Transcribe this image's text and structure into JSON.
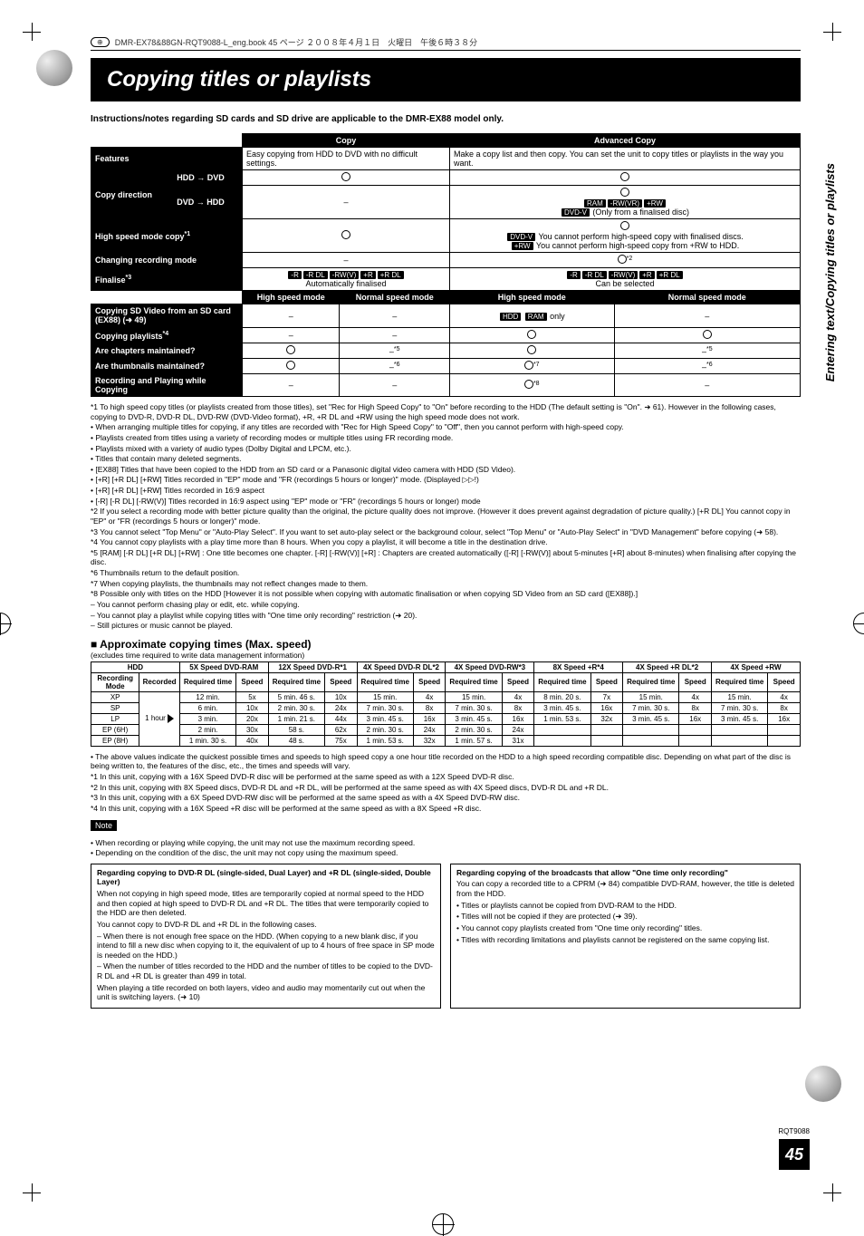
{
  "header_line": "DMR-EX78&88GN-RQT9088-L_eng.book   45 ページ   ２００８年４月１日　火曜日　午後６時３８分",
  "title": "Copying titles or playlists",
  "subnote": "Instructions/notes regarding SD cards and SD drive are applicable to the DMR-EX88 model only.",
  "side_label": "Entering text/Copying titles or playlists",
  "cmp": {
    "col_copy": "Copy",
    "col_adv": "Advanced Copy",
    "rows": {
      "features": "Features",
      "features_copy": "Easy copying from HDD to DVD with no difficult settings.",
      "features_adv": "Make a copy list and then copy.\nYou can set the unit to copy titles or playlists in the way you want.",
      "copy_dir": "Copy direction",
      "hdd_dvd": "HDD → DVD",
      "dvd_hdd": "DVD → HDD",
      "dvd_hdd_adv": "(Only from a finalised disc)",
      "hsm": "High speed mode copy",
      "hsm_adv_l1": "You cannot perform high-speed copy with finalised discs.",
      "hsm_adv_l2": "You cannot perform high-speed copy from +RW to HDD.",
      "crm": "Changing recording mode",
      "finalise": "Finalise",
      "finalise_copy": "Automatically finalised",
      "finalise_adv": "Can be selected",
      "sub_hsm": "High speed mode",
      "sub_nsm": "Normal speed mode",
      "sdv": "Copying SD Video from an SD card",
      "sdv_sub": "(EX88) (➜ 49)",
      "sdv_adv": "only",
      "cpl": "Copying playlists",
      "chm": "Are chapters maintained?",
      "thm": "Are thumbnails maintained?",
      "rpc": "Recording and Playing while Copying"
    }
  },
  "footnotes": [
    "*1 To high speed copy titles (or playlists created from those titles), set \"Rec for High Speed Copy\" to \"On\" before recording to the HDD (The default setting is \"On\". ➜ 61). However in the following cases, copying to DVD-R, DVD-R DL, DVD-RW (DVD-Video format), +R, +R DL and +RW using the high speed mode does not work.",
    "• When arranging multiple titles for copying, if any titles are recorded with \"Rec for High Speed Copy\" to \"Off\", then you cannot perform with high-speed copy.",
    "• Playlists created from titles using a variety of recording modes or multiple titles using FR recording mode.",
    "• Playlists mixed with a variety of audio types (Dolby Digital and LPCM, etc.).",
    "• Titles that contain many deleted segments.",
    "• [EX88] Titles that have been copied to the HDD from an SD card or a Panasonic digital video camera with HDD (SD Video).",
    "• [+R] [+R DL] [+RW] Titles recorded in \"EP\" mode and \"FR (recordings 5 hours or longer)\" mode. (Displayed ▷▷!)",
    "• [+R] [+R DL] [+RW] Titles recorded in 16:9 aspect",
    "• [-R] [-R DL] [-RW(V)] Titles recorded in 16:9 aspect using \"EP\" mode or \"FR\" (recordings 5 hours or longer) mode",
    "*2 If you select a recording mode with better picture quality than the original, the picture quality does not improve. (However it does prevent against degradation of picture quality.) [+R DL] You cannot copy in \"EP\" or \"FR (recordings 5 hours or longer)\" mode.",
    "*3 You cannot select \"Top Menu\" or \"Auto-Play Select\". If you want to set auto-play select or the background colour, select \"Top Menu\" or \"Auto-Play Select\" in \"DVD Management\" before copying (➜ 58).",
    "*4 You cannot copy playlists with a play time more than 8 hours. When you copy a playlist, it will become a title in the destination drive.",
    "*5 [RAM] [-R DL] [+R DL] [+RW] : One title becomes one chapter. [-R] [-RW(V)] [+R] : Chapters are created automatically ([-R] [-RW(V)] about 5-minutes [+R] about 8-minutes) when finalising after copying the disc.",
    "*6 Thumbnails return to the default position.",
    "*7 When copying playlists, the thumbnails may not reflect changes made to them.",
    "*8 Possible only with titles on the HDD  [However it is not possible when copying with automatic finalisation or when copying SD Video from an SD card ([EX88]).]",
    "– You cannot perform chasing play or edit, etc. while copying.",
    "– You cannot play a playlist while copying titles with \"One time only recording\" restriction (➜ 20).",
    "– Still pictures or music cannot be played."
  ],
  "approx_title": "Approximate copying times (Max. speed)",
  "approx_sub": "(excludes time required to write data management information)",
  "spd": {
    "groups": [
      "HDD",
      "5X Speed DVD-RAM",
      "12X Speed DVD-R*1",
      "4X Speed DVD-R DL*2",
      "4X Speed DVD-RW*3",
      "8X Speed +R*4",
      "4X Speed +R DL*2",
      "4X Speed +RW"
    ],
    "sub_rm": "Recording Mode",
    "sub_rec": "Recorded",
    "sub_rt": "Required time",
    "sub_sp": "Speed",
    "rows": [
      {
        "mode": "XP",
        "rec": "1 hour",
        "c": [
          [
            "12 min.",
            "5x"
          ],
          [
            "5 min. 46 s.",
            "10x"
          ],
          [
            "15 min.",
            "4x"
          ],
          [
            "15 min.",
            "4x"
          ],
          [
            "8 min. 20 s.",
            "7x"
          ],
          [
            "15 min.",
            "4x"
          ],
          [
            "15 min.",
            "4x"
          ]
        ]
      },
      {
        "mode": "SP",
        "rec": "",
        "c": [
          [
            "6 min.",
            "10x"
          ],
          [
            "2 min. 30 s.",
            "24x"
          ],
          [
            "7 min. 30 s.",
            "8x"
          ],
          [
            "7 min. 30 s.",
            "8x"
          ],
          [
            "3 min. 45 s.",
            "16x"
          ],
          [
            "7 min. 30 s.",
            "8x"
          ],
          [
            "7 min. 30 s.",
            "8x"
          ]
        ]
      },
      {
        "mode": "LP",
        "rec": "",
        "c": [
          [
            "3 min.",
            "20x"
          ],
          [
            "1 min. 21 s.",
            "44x"
          ],
          [
            "3 min. 45 s.",
            "16x"
          ],
          [
            "3 min. 45 s.",
            "16x"
          ],
          [
            "1 min. 53 s.",
            "32x"
          ],
          [
            "3 min. 45 s.",
            "16x"
          ],
          [
            "3 min. 45 s.",
            "16x"
          ]
        ]
      },
      {
        "mode": "EP (6H)",
        "rec": "",
        "c": [
          [
            "2 min.",
            "30x"
          ],
          [
            "58 s.",
            "62x"
          ],
          [
            "2 min. 30 s.",
            "24x"
          ],
          [
            "2 min. 30 s.",
            "24x"
          ],
          [
            "",
            ""
          ],
          [
            "",
            ""
          ],
          [
            "",
            ""
          ]
        ]
      },
      {
        "mode": "EP (8H)",
        "rec": "",
        "c": [
          [
            "1 min. 30 s.",
            "40x"
          ],
          [
            "48 s.",
            "75x"
          ],
          [
            "1 min. 53 s.",
            "32x"
          ],
          [
            "1 min. 57 s.",
            "31x"
          ],
          [
            "",
            ""
          ],
          [
            "",
            ""
          ],
          [
            "",
            ""
          ]
        ]
      }
    ]
  },
  "below_spd": [
    "• The above values indicate the quickest possible times and speeds to high speed copy a one hour title recorded on the HDD to a high speed recording compatible disc. Depending on what part of the disc is being written to, the features of the disc, etc., the times and speeds will vary.",
    "*1 In this unit, copying with a 16X Speed DVD-R disc will be performed at the same speed as with a 12X Speed DVD-R disc.",
    "*2 In this unit, copying with 8X Speed discs, DVD-R DL and +R DL, will be performed at the same speed as with 4X Speed discs, DVD-R DL and +R DL.",
    "*3 In this unit, copying with a 6X Speed DVD-RW disc will be performed at the same speed as with a 4X Speed DVD-RW disc.",
    "*4 In this unit, copying with a 16X Speed +R disc will be performed at the same speed as with a 8X Speed +R disc."
  ],
  "note_label": "Note",
  "note_lines": [
    "• When recording or playing while copying, the unit may not use the maximum recording speed.",
    "• Depending on the condition of the disc, the unit may not copy using the maximum speed."
  ],
  "box_left": {
    "hdr": "Regarding copying to DVD-R DL (single-sided, Dual Layer) and +R DL (single-sided, Double Layer)",
    "body": [
      "When not copying in high speed mode, titles are temporarily copied at normal speed to the HDD and then copied at high speed to DVD-R DL and +R DL. The titles that were temporarily copied to the HDD are then deleted.",
      "You cannot copy to DVD-R DL and +R DL in the following cases.",
      "– When there is not enough free space on the HDD. (When copying to a new blank disc, if you intend to fill a new disc when copying to it, the equivalent of up to 4 hours of free space in SP mode is needed on the HDD.)",
      "– When the number of titles recorded to the HDD and the number of titles to be copied to the DVD-R DL and +R DL is greater than 499 in total.",
      "When playing a title recorded on both layers, video and audio may momentarily cut out when the unit is switching layers. (➜ 10)"
    ]
  },
  "box_right": {
    "hdr": "Regarding copying of the broadcasts that allow \"One time only recording\"",
    "body": [
      "You can copy a recorded title to a CPRM (➜ 84) compatible DVD-RAM, however, the title is deleted from the HDD.",
      "• Titles or playlists cannot be copied from DVD-RAM to the HDD.",
      "• Titles will not be copied if they are protected (➜ 39).",
      "• You cannot copy playlists created from \"One time only recording\" titles.",
      "• Titles with recording limitations and playlists cannot be registered on the same copying list."
    ]
  },
  "rqt": "RQT9088",
  "page_num": "45"
}
